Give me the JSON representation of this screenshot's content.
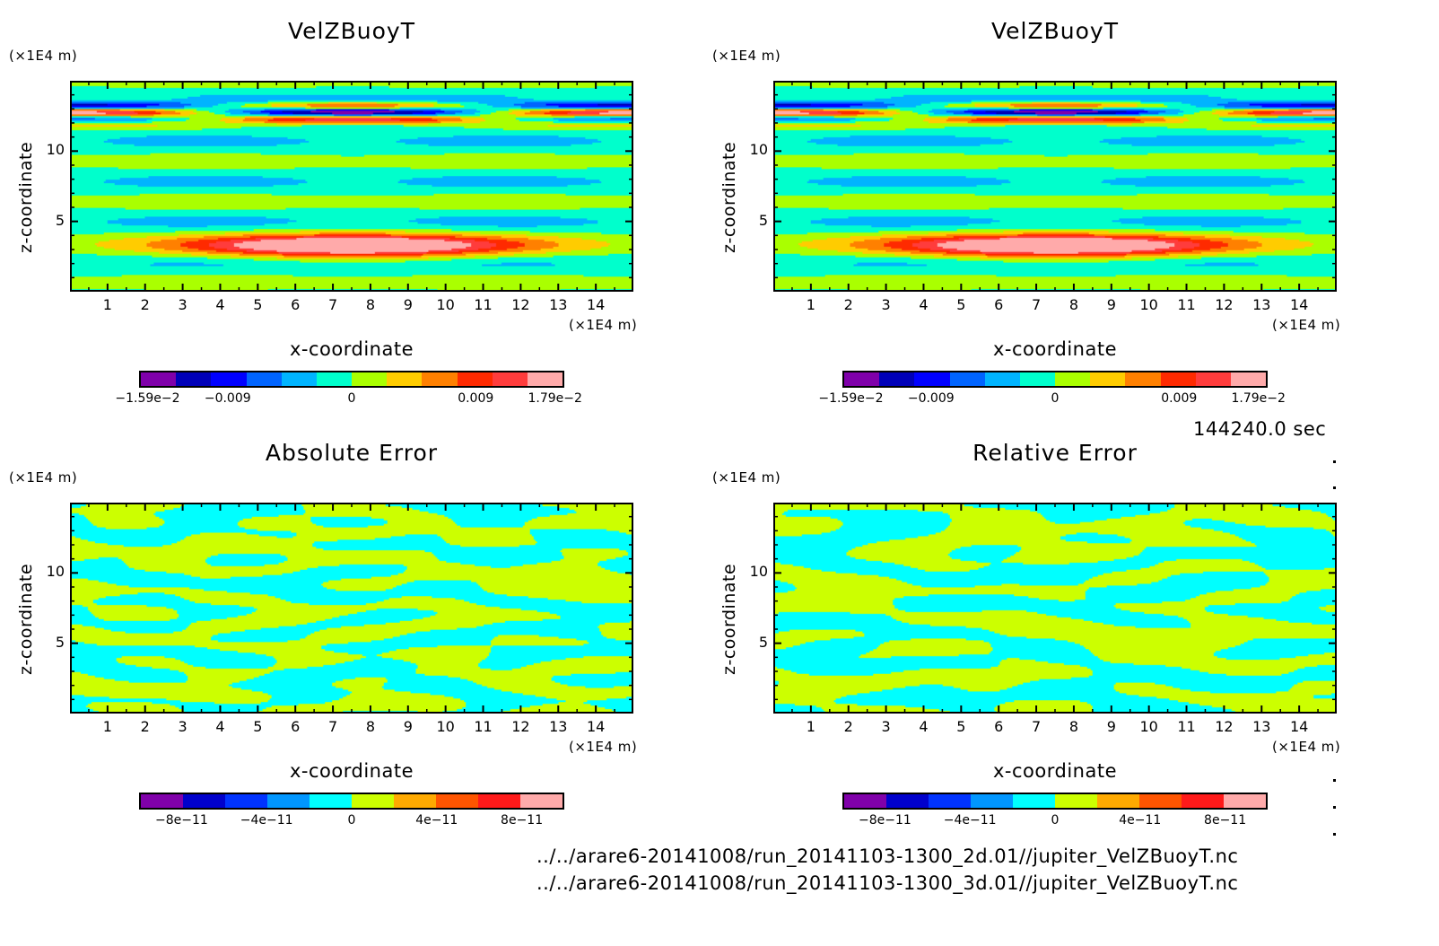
{
  "chart_data": [
    {
      "type": "heatmap",
      "id": "velz-2d",
      "title": "VelZBuoyT",
      "xlabel": "x-coordinate",
      "ylabel": "z-coordinate",
      "x_unit": "(×1E4 m)",
      "y_unit": "(×1E4 m)",
      "xlim": [
        0,
        15
      ],
      "ylim": [
        0,
        15
      ],
      "x_ticks": [
        1,
        2,
        3,
        4,
        5,
        6,
        7,
        8,
        9,
        10,
        11,
        12,
        13,
        14
      ],
      "y_ticks": [
        5,
        10
      ],
      "colorbar": {
        "colors": [
          "#7f00aa",
          "#0000b8",
          "#0000ff",
          "#0064ff",
          "#00b4ff",
          "#00ffcc",
          "#aaff00",
          "#ffcc00",
          "#ff8000",
          "#ff2a00",
          "#ff3c3c",
          "#ffaaaa"
        ],
        "tick_labels": [
          "-1.59e-2",
          "-0.009",
          "0",
          "0.009",
          "1.79e-2"
        ],
        "range": [
          -0.0159,
          0.0179
        ]
      },
      "field": "VelZBuoyT"
    },
    {
      "type": "heatmap",
      "id": "velz-3d",
      "title": "VelZBuoyT",
      "xlabel": "x-coordinate",
      "ylabel": "z-coordinate",
      "x_unit": "(×1E4 m)",
      "y_unit": "(×1E4 m)",
      "xlim": [
        0,
        15
      ],
      "ylim": [
        0,
        15
      ],
      "x_ticks": [
        1,
        2,
        3,
        4,
        5,
        6,
        7,
        8,
        9,
        10,
        11,
        12,
        13,
        14
      ],
      "y_ticks": [
        5,
        10
      ],
      "colorbar": {
        "colors": [
          "#7f00aa",
          "#0000b8",
          "#0000ff",
          "#0064ff",
          "#00b4ff",
          "#00ffcc",
          "#aaff00",
          "#ffcc00",
          "#ff8000",
          "#ff2a00",
          "#ff3c3c",
          "#ffaaaa"
        ],
        "tick_labels": [
          "-1.59e-2",
          "-0.009",
          "0",
          "0.009",
          "1.79e-2"
        ],
        "range": [
          -0.0159,
          0.0179
        ]
      },
      "field": "VelZBuoyT"
    },
    {
      "type": "heatmap",
      "id": "abs-error",
      "title": "Absolute Error",
      "xlabel": "x-coordinate",
      "ylabel": "z-coordinate",
      "x_unit": "(×1E4 m)",
      "y_unit": "(×1E4 m)",
      "xlim": [
        0,
        15
      ],
      "ylim": [
        0,
        15
      ],
      "x_ticks": [
        1,
        2,
        3,
        4,
        5,
        6,
        7,
        8,
        9,
        10,
        11,
        12,
        13,
        14
      ],
      "y_ticks": [
        5,
        10
      ],
      "colorbar": {
        "colors": [
          "#8000aa",
          "#0000cc",
          "#0033ff",
          "#0096ff",
          "#00ffff",
          "#ccff00",
          "#ffaa00",
          "#ff5500",
          "#ff1a1a",
          "#ffaaaa"
        ],
        "tick_labels": [
          "-8e-11",
          "-4e-11",
          "0",
          "4e-11",
          "8e-11"
        ],
        "range": [
          -1e-10,
          1e-10
        ]
      },
      "field": "noise",
      "seed": 3
    },
    {
      "type": "heatmap",
      "id": "rel-error",
      "title": "Relative Error",
      "xlabel": "x-coordinate",
      "ylabel": "z-coordinate",
      "x_unit": "(×1E4 m)",
      "y_unit": "(×1E4 m)",
      "xlim": [
        0,
        15
      ],
      "ylim": [
        0,
        15
      ],
      "x_ticks": [
        1,
        2,
        3,
        4,
        5,
        6,
        7,
        8,
        9,
        10,
        11,
        12,
        13,
        14
      ],
      "y_ticks": [
        5,
        10
      ],
      "colorbar": {
        "colors": [
          "#8000aa",
          "#0000cc",
          "#0033ff",
          "#0096ff",
          "#00ffff",
          "#ccff00",
          "#ffaa00",
          "#ff5500",
          "#ff1a1a",
          "#ffaaaa"
        ],
        "tick_labels": [
          "-8e-11",
          "-4e-11",
          "0",
          "4e-11",
          "8e-11"
        ],
        "range": [
          -1e-10,
          1e-10
        ]
      },
      "field": "noise",
      "seed": 11
    }
  ],
  "time_label": "144240.0 sec",
  "files": [
    "../../arare6-20141008/run_20141103-1300_2d.01//jupiter_VelZBuoyT.nc",
    "../../arare6-20141008/run_20141103-1300_3d.01//jupiter_VelZBuoyT.nc"
  ]
}
